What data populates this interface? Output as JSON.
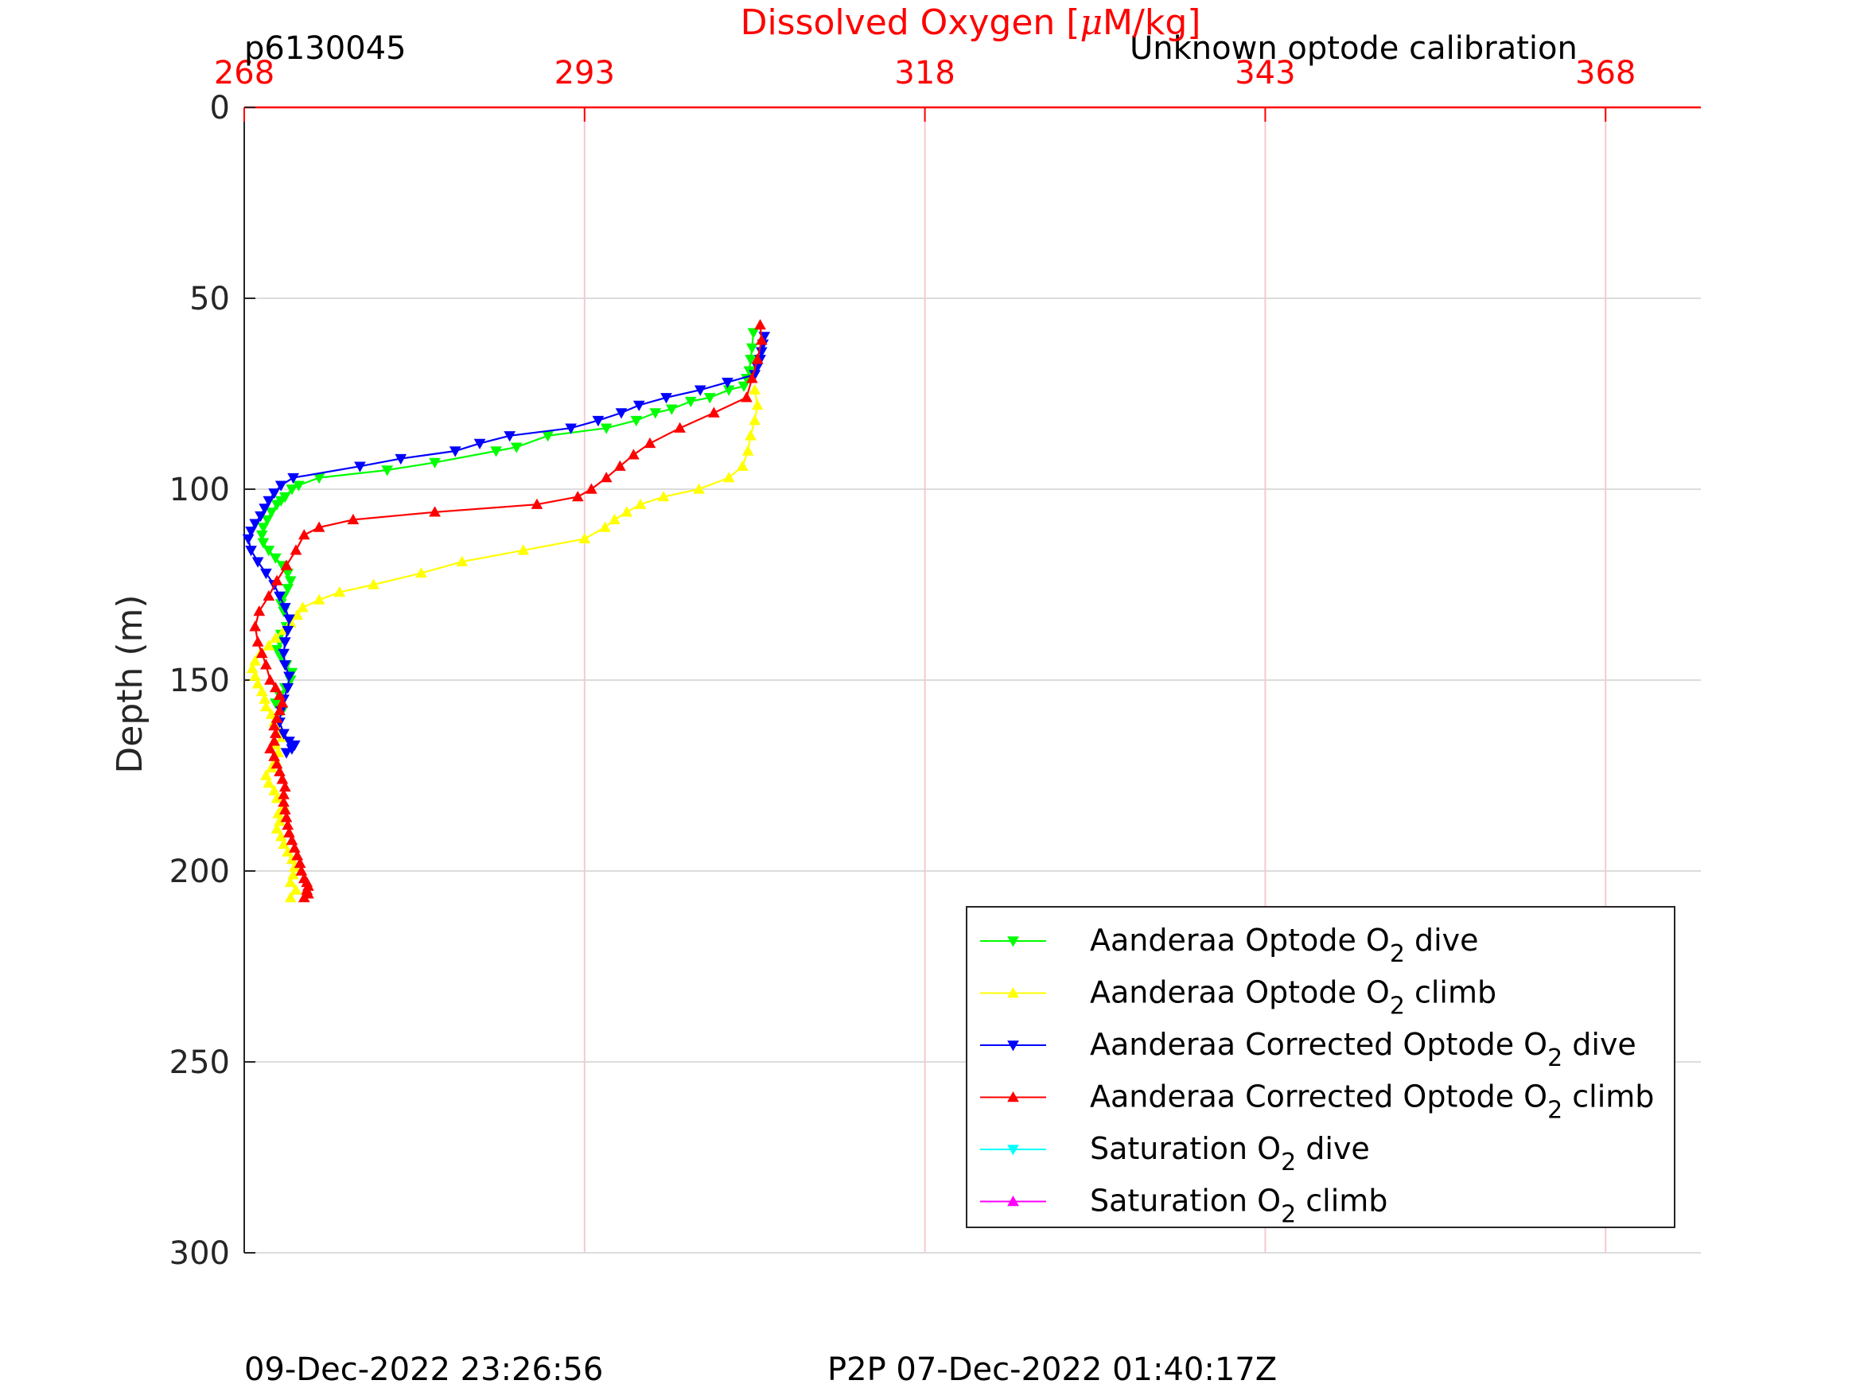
{
  "figure": {
    "profile_id": "p6130045",
    "calibration_note": "Unknown optode calibration",
    "footer_left": "09-Dec-2022 23:26:56",
    "footer_right": "P2P 07-Dec-2022 01:40:17Z",
    "xlabel_prefix": "Dissolved Oxygen [",
    "xlabel_mu": "μ",
    "xlabel_suffix": "M/kg]",
    "ylabel": "Depth (m)"
  },
  "chart_data": {
    "type": "line",
    "title": "",
    "xlabel": "Dissolved Oxygen [μM/kg]",
    "ylabel": "Depth (m)",
    "x_axis_position": "top",
    "y_axis_reversed": true,
    "xlim": [
      268,
      375
    ],
    "ylim": [
      0,
      300
    ],
    "xticks": [
      268,
      293,
      318,
      343,
      368
    ],
    "yticks": [
      0,
      50,
      100,
      150,
      200,
      250,
      300
    ],
    "grid": true,
    "legend_position": "bottom-right",
    "axis_color": "#ff0000",
    "series": [
      {
        "name": "Aanderaa Optode O2 dive",
        "label_base": "Aanderaa Optode O",
        "label_sub": "2",
        "label_tail": " dive",
        "color": "#00ff00",
        "marker": "down-triangle",
        "x": [
          305.4,
          305.3,
          305.2,
          305.1,
          304.9,
          304.7,
          303.6,
          302.2,
          300.8,
          299.4,
          298.2,
          296.8,
          294.6,
          290.3,
          288.0,
          286.5,
          282.0,
          278.5,
          273.5,
          272.0,
          271.5,
          271.0,
          270.7,
          270.4,
          270.0,
          269.7,
          269.4,
          269.3,
          269.4,
          269.8,
          270.3,
          270.8,
          271.2,
          271.4,
          271.2,
          270.9,
          270.7,
          270.9,
          271.3,
          271.1,
          270.7,
          270.6,
          270.4,
          270.7,
          271.1,
          271.5,
          271.4,
          271.0,
          270.6,
          270.3,
          270.8
        ],
        "y": [
          59,
          63,
          66,
          69,
          71,
          73,
          74,
          76,
          77,
          79,
          80,
          82,
          84,
          86,
          89,
          90,
          93,
          95,
          97,
          99,
          100,
          102,
          103,
          104,
          106,
          108,
          110,
          112,
          114,
          116,
          118,
          120,
          122,
          124,
          126,
          128,
          130,
          132,
          134,
          136,
          138,
          140,
          142,
          144,
          146,
          148,
          150,
          152,
          154,
          156,
          158
        ]
      },
      {
        "name": "Aanderaa Optode O2 climb",
        "label_base": "Aanderaa Optode O",
        "label_sub": "2",
        "label_tail": " climb",
        "color": "#ffff00",
        "marker": "up-triangle",
        "x": [
          271.4,
          271.8,
          271.4,
          271.6,
          271.7,
          271.5,
          271.2,
          270.9,
          270.7,
          270.4,
          270.6,
          270.5,
          270.9,
          270.4,
          270.2,
          269.8,
          269.6,
          270.0,
          270.3,
          270.5,
          270.3,
          270.8,
          270.5,
          270.2,
          270.0,
          269.6,
          269.5,
          269.3,
          269.0,
          268.8,
          268.6,
          268.8,
          269.2,
          269.8,
          270.3,
          270.9,
          271.4,
          271.9,
          272.3,
          273.5,
          275.0,
          277.5,
          281.0,
          284.0,
          288.5,
          293.0,
          294.5,
          295.2,
          296.1,
          297.1,
          298.8,
          301.4,
          303.6,
          304.6,
          305.0,
          305.2,
          305.5,
          305.7,
          305.5
        ],
        "y": [
          207,
          205,
          203,
          201,
          199,
          197,
          195,
          193,
          191,
          189,
          187,
          185,
          183,
          181,
          179,
          177,
          175,
          173,
          171,
          169,
          167,
          165,
          163,
          161,
          159,
          157,
          155,
          153,
          151,
          149,
          147,
          145,
          143,
          141,
          139,
          137,
          135,
          133,
          131,
          129,
          127,
          125,
          122,
          119,
          116,
          113,
          110,
          108,
          106,
          104,
          102,
          100,
          97,
          94,
          90,
          86,
          82,
          78,
          74
        ]
      },
      {
        "name": "Aanderaa Corrected Optode O2 dive",
        "label_base": "Aanderaa Corrected Optode O",
        "label_sub": "2",
        "label_tail": " dive",
        "color": "#0000ff",
        "marker": "down-triangle",
        "x": [
          306.2,
          306.1,
          306.0,
          305.9,
          305.7,
          305.5,
          303.5,
          301.5,
          299.0,
          297.0,
          295.7,
          294.0,
          292.0,
          287.5,
          285.3,
          283.5,
          279.5,
          276.5,
          271.6,
          270.7,
          270.2,
          269.8,
          269.5,
          269.2,
          268.8,
          268.5,
          268.3,
          268.5,
          269.0,
          269.6,
          270.2,
          270.6,
          271.0,
          271.3,
          271.2,
          271.0,
          270.9,
          271.0,
          271.3,
          271.2,
          270.9,
          270.7,
          270.6,
          270.9,
          271.3,
          271.7,
          271.5,
          271.1
        ],
        "y": [
          60,
          62,
          64,
          66,
          68,
          70,
          72,
          74,
          76,
          78,
          80,
          82,
          84,
          86,
          88,
          90,
          92,
          94,
          97,
          99,
          101,
          103,
          105,
          107,
          109,
          111,
          113,
          116,
          119,
          122,
          125,
          128,
          131,
          134,
          137,
          140,
          143,
          146,
          149,
          152,
          155,
          158,
          161,
          164,
          166,
          167,
          168,
          169
        ]
      },
      {
        "name": "Aanderaa Corrected Optode O2 climb",
        "label_base": "Aanderaa Corrected Optode O",
        "label_sub": "2",
        "label_tail": " climb",
        "color": "#ff0000",
        "marker": "up-triangle",
        "x": [
          272.4,
          272.7,
          272.6,
          272.7,
          272.6,
          272.4,
          272.2,
          272.1,
          271.9,
          271.7,
          271.5,
          271.3,
          271.2,
          271.1,
          271.0,
          270.9,
          270.9,
          271.0,
          270.8,
          270.6,
          270.4,
          270.2,
          269.9,
          270.2,
          270.3,
          270.2,
          270.4,
          270.6,
          270.8,
          270.6,
          270.3,
          269.9,
          269.6,
          269.3,
          269.0,
          268.8,
          269.1,
          269.8,
          270.4,
          271.1,
          271.8,
          272.4,
          273.5,
          276.0,
          282.0,
          289.5,
          292.5,
          293.5,
          294.6,
          295.6,
          296.6,
          297.8,
          300.0,
          302.5,
          304.9,
          305.3,
          305.7,
          306.0,
          305.9
        ],
        "y": [
          207,
          206,
          205,
          204,
          203,
          202,
          200,
          198,
          196,
          194,
          192,
          190,
          188,
          186,
          184,
          182,
          180,
          178,
          176,
          174,
          172,
          170,
          168,
          166,
          164,
          162,
          160,
          158,
          156,
          154,
          152,
          150,
          146,
          143,
          140,
          136,
          132,
          128,
          124,
          120,
          116,
          112,
          110,
          108,
          106,
          104,
          102,
          100,
          97,
          94,
          91,
          88,
          84,
          80,
          76,
          71,
          66,
          61,
          57
        ]
      },
      {
        "name": "Saturation O2 dive",
        "label_base": "Saturation O",
        "label_sub": "2",
        "label_tail": " dive",
        "color": "#00ffff",
        "marker": "down-triangle",
        "x": [],
        "y": []
      },
      {
        "name": "Saturation O2 climb",
        "label_base": "Saturation O",
        "label_sub": "2",
        "label_tail": " climb",
        "color": "#ff00ff",
        "marker": "up-triangle",
        "x": [],
        "y": []
      }
    ]
  }
}
